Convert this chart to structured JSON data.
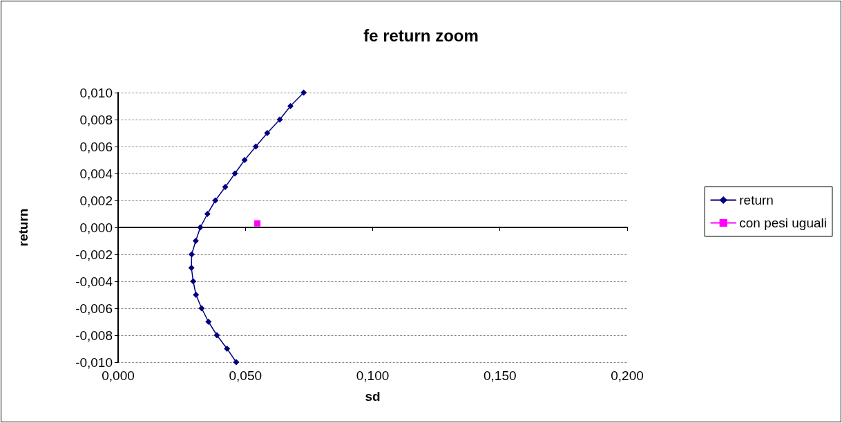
{
  "chart_data": {
    "type": "line",
    "title": "fe return zoom",
    "xlabel": "sd",
    "ylabel": "return",
    "xlim": [
      0,
      0.2
    ],
    "xticks": [
      {
        "value": 0,
        "label": "0,000"
      },
      {
        "value": 0.05,
        "label": "0,050"
      },
      {
        "value": 0.1,
        "label": "0,100"
      },
      {
        "value": 0.15,
        "label": "0,150"
      },
      {
        "value": 0.2,
        "label": "0,200"
      }
    ],
    "ylim": [
      -0.01,
      0.01
    ],
    "yticks": [
      {
        "value": -0.01,
        "label": "-0,010"
      },
      {
        "value": -0.008,
        "label": "-0,008"
      },
      {
        "value": -0.006,
        "label": "-0,006"
      },
      {
        "value": -0.004,
        "label": "-0,004"
      },
      {
        "value": -0.002,
        "label": "-0,002"
      },
      {
        "value": 0,
        "label": "0,000"
      },
      {
        "value": 0.002,
        "label": "0,002"
      },
      {
        "value": 0.004,
        "label": "0,004"
      },
      {
        "value": 0.006,
        "label": "0,006"
      },
      {
        "value": 0.008,
        "label": "0,008"
      },
      {
        "value": 0.01,
        "label": "0,010"
      }
    ],
    "grid": "y",
    "legend": "right",
    "series": [
      {
        "name": "return",
        "color": "#000080",
        "marker": "diamond",
        "line_style": "solid",
        "x": [
          0.0729,
          0.0677,
          0.0635,
          0.0586,
          0.0541,
          0.0497,
          0.0459,
          0.0421,
          0.0382,
          0.0351,
          0.0323,
          0.0305,
          0.0289,
          0.0288,
          0.0295,
          0.0306,
          0.0328,
          0.0355,
          0.0388,
          0.0428,
          0.0464
        ],
        "values": [
          0.01,
          0.009,
          0.008,
          0.007,
          0.006,
          0.005,
          0.004,
          0.003,
          0.002,
          0.001,
          0,
          -0.001,
          -0.002,
          -0.003,
          -0.004,
          -0.005,
          -0.006,
          -0.007,
          -0.008,
          -0.009,
          -0.01
        ]
      },
      {
        "name": "con pesi uguali",
        "color": "#ff00ff",
        "marker": "square",
        "line_style": "solid",
        "x": [
          0.0547
        ],
        "values": [
          0.0003
        ]
      }
    ]
  }
}
